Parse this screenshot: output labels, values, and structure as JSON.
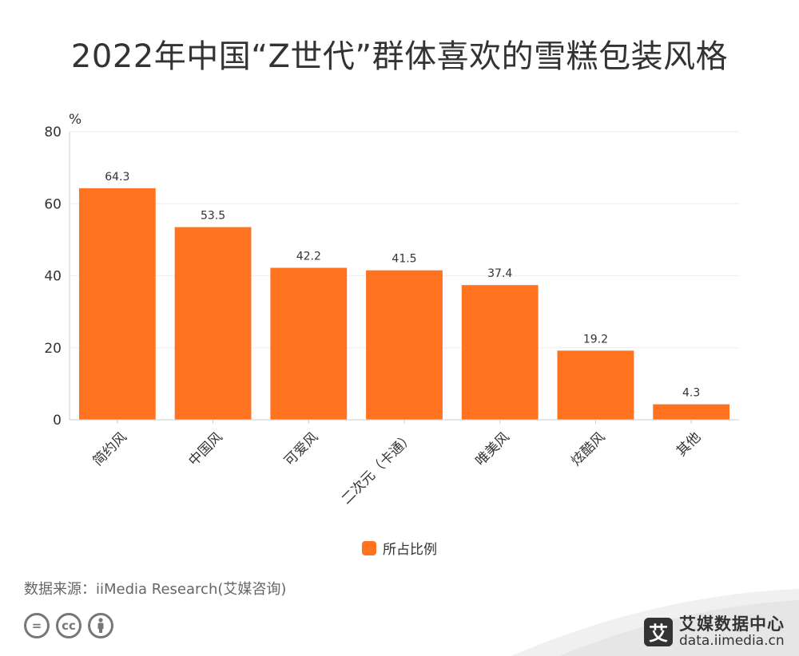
{
  "title": "2022年中国“Z世代”群体喜欢的雪糕包装风格",
  "chart_data": {
    "type": "bar",
    "title": "2022年中国“Z世代”群体喜欢的雪糕包装风格",
    "unit": "%",
    "categories": [
      "简约风",
      "中国风",
      "可爱风",
      "二次元（卡通）",
      "唯美风",
      "炫酷风",
      "其他"
    ],
    "series": [
      {
        "name": "所占比例",
        "values": [
          64.3,
          53.5,
          42.2,
          41.5,
          37.4,
          19.2,
          4.3
        ],
        "color": "#FF7320"
      }
    ],
    "ylim": [
      0,
      80
    ],
    "yticks": [
      0,
      20,
      40,
      60,
      80
    ],
    "grid": true,
    "legend_position": "bottom"
  },
  "legend": {
    "label": "所占比例"
  },
  "source": "数据来源：iiMedia Research(艾媒咨询)",
  "license_icons": [
    "=",
    "cc",
    "person-icon"
  ],
  "brand": {
    "logo_char": "艾",
    "name": "艾媒数据中心",
    "url": "data.iimedia.cn"
  }
}
